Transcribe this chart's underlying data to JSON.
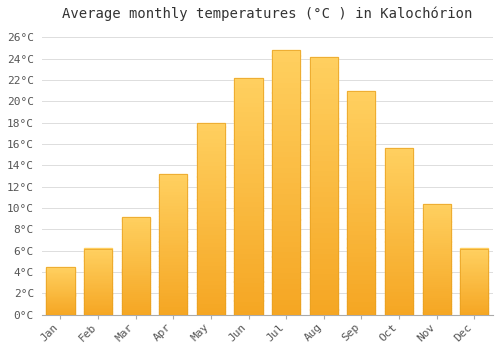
{
  "title": "Average monthly temperatures (°C ) in Kalochórion",
  "months": [
    "Jan",
    "Feb",
    "Mar",
    "Apr",
    "May",
    "Jun",
    "Jul",
    "Aug",
    "Sep",
    "Oct",
    "Nov",
    "Dec"
  ],
  "values": [
    4.5,
    6.2,
    9.2,
    13.2,
    18.0,
    22.2,
    24.8,
    24.2,
    21.0,
    15.6,
    10.4,
    6.2
  ],
  "bar_color_bottom": "#F5A623",
  "bar_color_top": "#FFD060",
  "bar_edge_color": "#E8A020",
  "ylim": [
    0,
    27
  ],
  "yticks": [
    0,
    2,
    4,
    6,
    8,
    10,
    12,
    14,
    16,
    18,
    20,
    22,
    24,
    26
  ],
  "ytick_labels": [
    "0°C",
    "2°C",
    "4°C",
    "6°C",
    "8°C",
    "10°C",
    "12°C",
    "14°C",
    "16°C",
    "18°C",
    "20°C",
    "22°C",
    "24°C",
    "26°C"
  ],
  "background_color": "#ffffff",
  "grid_color": "#dddddd",
  "title_fontsize": 10,
  "tick_fontsize": 8
}
